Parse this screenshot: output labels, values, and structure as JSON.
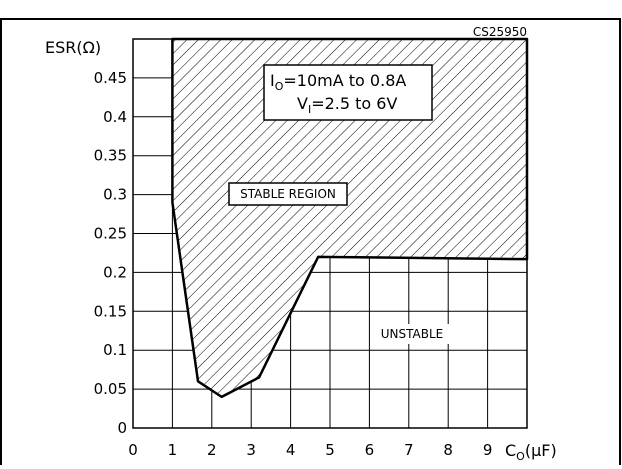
{
  "chart_data": {
    "type": "area",
    "figure_id": "CS25950",
    "ylabel": "ESR(Ω)",
    "xlabel": "C",
    "xlabel_sub": "O",
    "xlabel_unit": "(μF)",
    "x_ticks": [
      "0",
      "1",
      "2",
      "3",
      "4",
      "5",
      "6",
      "7",
      "8",
      "9"
    ],
    "y_ticks": [
      "0",
      "0.05",
      "0.1",
      "0.15",
      "0.2",
      "0.25",
      "0.3",
      "0.35",
      "0.4",
      "0.45"
    ],
    "xlim": [
      0,
      10
    ],
    "ylim": [
      0,
      0.5
    ],
    "grid": true,
    "stable_boundary": {
      "x": [
        1,
        1,
        1.65,
        2.25,
        3.2,
        4.7,
        10,
        10,
        1
      ],
      "y": [
        0.5,
        0.29,
        0.06,
        0.04,
        0.065,
        0.22,
        0.217,
        0.5,
        0.5
      ]
    },
    "conditions": {
      "line1_main": "I",
      "line1_sub": "O",
      "line1_rest": "=10mA  to  0.8A",
      "line2_main": "V",
      "line2_sub": "I",
      "line2_rest": "=2.5  to  6V"
    },
    "labels": {
      "stable": "STABLE REGION",
      "unstable": "UNSTABLE"
    }
  }
}
